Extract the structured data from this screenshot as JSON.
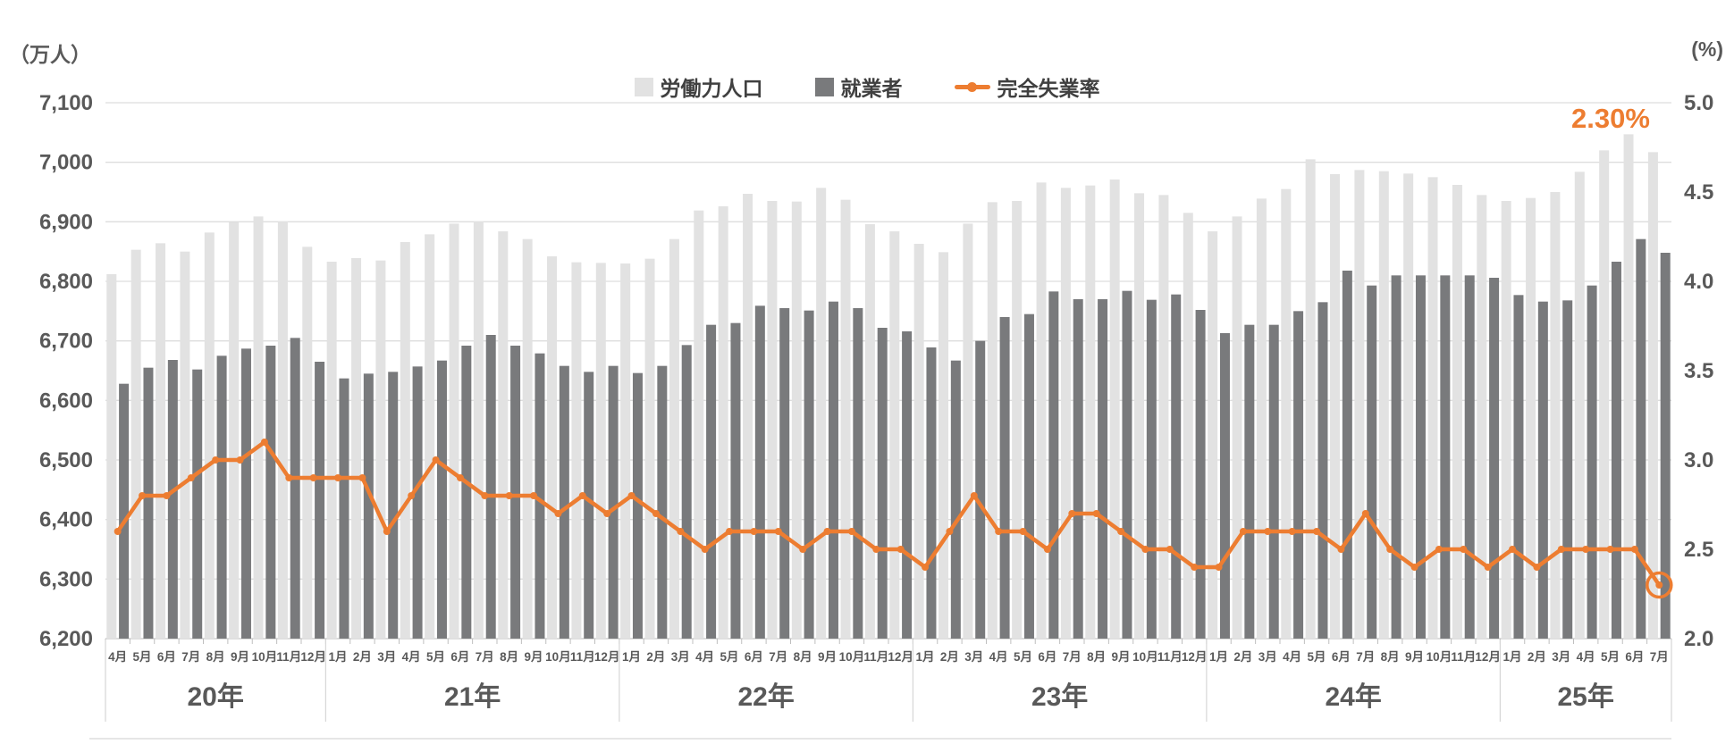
{
  "units": {
    "left": "（万人）",
    "right": "(%)"
  },
  "legend": [
    {
      "label": "労働力人口",
      "type": "square",
      "color": "#E2E2E2"
    },
    {
      "label": "就業者",
      "type": "square",
      "color": "#797A7C"
    },
    {
      "label": "完全失業率",
      "type": "line",
      "color": "#ED7D31"
    }
  ],
  "annotation": {
    "text": "2.30%",
    "color": "#ED7D31"
  },
  "left_axis": {
    "ticks": [
      "7,100",
      "7,000",
      "6,900",
      "6,800",
      "6,700",
      "6,600",
      "6,500",
      "6,400",
      "6,300",
      "6,200"
    ],
    "min": 6200,
    "max": 7100
  },
  "right_axis": {
    "ticks": [
      "5.0",
      "4.5",
      "4.0",
      "3.5",
      "3.0",
      "2.5",
      "2.0"
    ],
    "min": 2.0,
    "max": 5.0
  },
  "chart_data": {
    "type": "bar+line",
    "title": "",
    "ylabel_left": "万人",
    "ylabel_right": "%",
    "ylim_left": [
      6200,
      7100
    ],
    "ylim_right": [
      2.0,
      5.0
    ],
    "grid": true,
    "legend_position": "top-center",
    "year_groups": [
      {
        "label": "20年",
        "months": [
          "4月",
          "5月",
          "6月",
          "7月",
          "8月",
          "9月",
          "10月",
          "11月",
          "12月"
        ]
      },
      {
        "label": "21年",
        "months": [
          "1月",
          "2月",
          "3月",
          "4月",
          "5月",
          "6月",
          "7月",
          "8月",
          "9月",
          "10月",
          "11月",
          "12月"
        ]
      },
      {
        "label": "22年",
        "months": [
          "1月",
          "2月",
          "3月",
          "4月",
          "5月",
          "6月",
          "7月",
          "8月",
          "9月",
          "10月",
          "11月",
          "12月"
        ]
      },
      {
        "label": "23年",
        "months": [
          "1月",
          "2月",
          "3月",
          "4月",
          "5月",
          "6月",
          "7月",
          "8月",
          "9月",
          "10月",
          "11月",
          "12月"
        ]
      },
      {
        "label": "24年",
        "months": [
          "1月",
          "2月",
          "3月",
          "4月",
          "5月",
          "6月",
          "7月",
          "8月",
          "9月",
          "10月",
          "11月",
          "12月"
        ]
      },
      {
        "label": "25年",
        "months": [
          "1月",
          "2月",
          "3月",
          "4月",
          "5月",
          "6月",
          "7月"
        ]
      }
    ],
    "series": [
      {
        "name": "労働力人口",
        "type": "bar",
        "axis": "left",
        "color": "#E2E2E2",
        "values": [
          6812,
          6853,
          6864,
          6850,
          6882,
          6899,
          6909,
          6901,
          6858,
          6833,
          6839,
          6835,
          6866,
          6879,
          6897,
          6901,
          6884,
          6871,
          6842,
          6832,
          6831,
          6830,
          6838,
          6871,
          6919,
          6926,
          6947,
          6935,
          6934,
          6957,
          6937,
          6896,
          6884,
          6863,
          6849,
          6897,
          6933,
          6935,
          6966,
          6957,
          6961,
          6971,
          6948,
          6945,
          6915,
          6884,
          6909,
          6939,
          6955,
          7005,
          6980,
          6987,
          6985,
          6981,
          6975,
          6962,
          6945,
          6935,
          6940,
          6950,
          6984,
          7020,
          7047,
          7017
        ]
      },
      {
        "name": "就業者",
        "type": "bar",
        "axis": "left",
        "color": "#797A7C",
        "values": [
          6628,
          6655,
          6668,
          6652,
          6675,
          6687,
          6692,
          6705,
          6665,
          6637,
          6645,
          6648,
          6657,
          6667,
          6692,
          6710,
          6692,
          6679,
          6658,
          6648,
          6658,
          6646,
          6658,
          6693,
          6727,
          6730,
          6759,
          6755,
          6751,
          6766,
          6755,
          6722,
          6716,
          6689,
          6667,
          6700,
          6740,
          6745,
          6783,
          6770,
          6770,
          6784,
          6769,
          6778,
          6752,
          6713,
          6727,
          6727,
          6750,
          6765,
          6818,
          6793,
          6810,
          6810,
          6810,
          6810,
          6806,
          6777,
          6766,
          6768,
          6793,
          6833,
          6871,
          6848
        ]
      },
      {
        "name": "完全失業率",
        "type": "line",
        "axis": "right",
        "color": "#ED7D31",
        "last_point_circled": true,
        "values": [
          2.6,
          2.8,
          2.8,
          2.9,
          3.0,
          3.0,
          3.1,
          2.9,
          2.9,
          2.9,
          2.9,
          2.6,
          2.8,
          3.0,
          2.9,
          2.8,
          2.8,
          2.8,
          2.7,
          2.8,
          2.7,
          2.8,
          2.7,
          2.6,
          2.5,
          2.6,
          2.6,
          2.6,
          2.5,
          2.6,
          2.6,
          2.5,
          2.5,
          2.4,
          2.6,
          2.8,
          2.6,
          2.6,
          2.5,
          2.7,
          2.7,
          2.6,
          2.5,
          2.5,
          2.4,
          2.4,
          2.6,
          2.6,
          2.6,
          2.6,
          2.5,
          2.7,
          2.5,
          2.4,
          2.5,
          2.5,
          2.4,
          2.5,
          2.4,
          2.5,
          2.5,
          2.5,
          2.5,
          2.3
        ]
      }
    ]
  },
  "colors": {
    "grid": "#DDDDDD",
    "baseline": "#C6C6C6",
    "tick": "#BFBFBF",
    "separator": "#D6D6D6",
    "axis_text": "#595959",
    "legend_text": "#404040"
  }
}
